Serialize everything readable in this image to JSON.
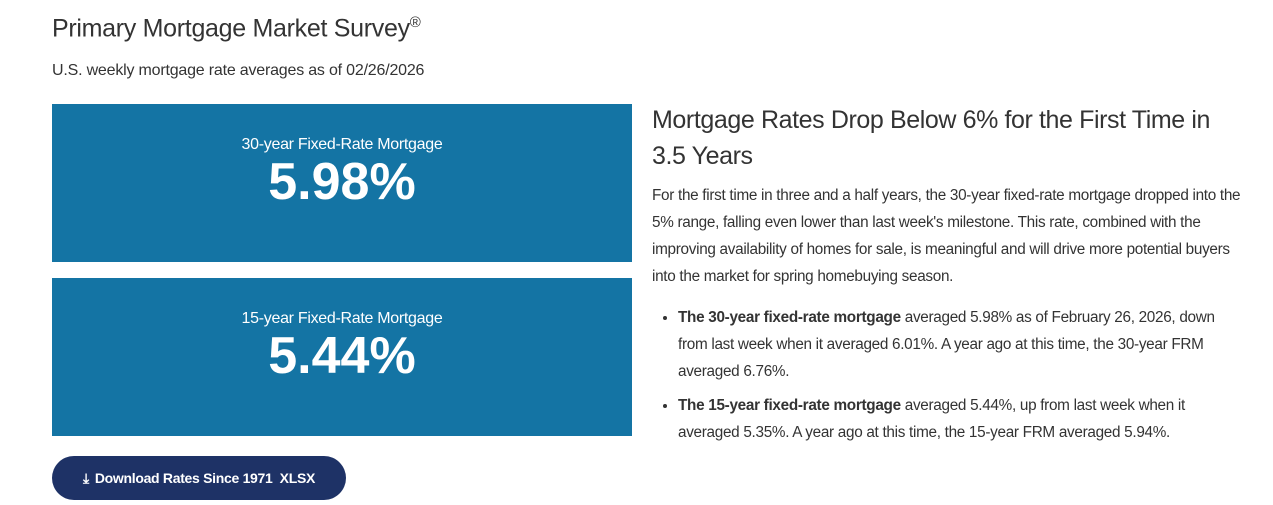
{
  "header": {
    "title": "Primary Mortgage Market Survey",
    "reg": "®",
    "subtitle": "U.S. weekly mortgage rate averages as of 02/26/2026"
  },
  "rates": [
    {
      "label": "30-year Fixed-Rate Mortgage",
      "value": "5.98%"
    },
    {
      "label": "15-year Fixed-Rate Mortgage",
      "value": "5.44%"
    }
  ],
  "download": {
    "icon": "download-icon",
    "label": "Download Rates Since 1971  XLSX"
  },
  "article": {
    "headline": "Mortgage Rates Drop Below 6% for the First Time in 3.5 Years",
    "body": "For the first time in three and a half years, the 30-year fixed-rate mortgage dropped into the 5% range, falling even lower than last week's milestone. This rate, combined with the improving availability of homes for sale, is meaningful and will drive more potential buyers into the market for spring homebuying season.",
    "bullets": [
      {
        "bold": "The 30-year fixed-rate mortgage",
        "text": " averaged 5.98% as of February 26, 2026, down from last week when it averaged 6.01%. A year ago at this time, the 30-year FRM averaged 6.76%."
      },
      {
        "bold": "The 15-year fixed-rate mortgage",
        "text": " averaged 5.44%, up from last week when it averaged 5.35%. A year ago at this time, the 15-year FRM averaged 5.94%."
      }
    ]
  },
  "colors": {
    "box": "#1474a4",
    "button": "#1e3266"
  }
}
